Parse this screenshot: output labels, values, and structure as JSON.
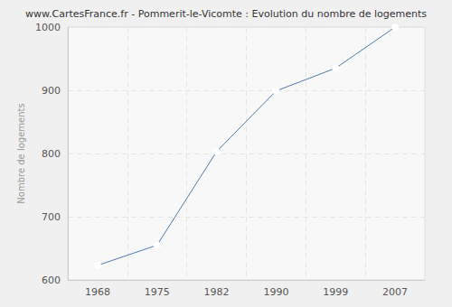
{
  "chart_data": {
    "type": "line",
    "title": "www.CartesFrance.fr - Pommerit-le-Vicomte : Evolution du nombre de logements",
    "y_label": "Nombre de logements",
    "categories": [
      "1968",
      "1975",
      "1982",
      "1990",
      "1999",
      "2007"
    ],
    "values": [
      623,
      655,
      803,
      899,
      935,
      1000
    ],
    "color": "#4f7cac",
    "marker": "circle",
    "ylim": [
      600,
      1000
    ],
    "yticks": [
      600,
      700,
      800,
      900,
      1000
    ],
    "grid": true
  }
}
